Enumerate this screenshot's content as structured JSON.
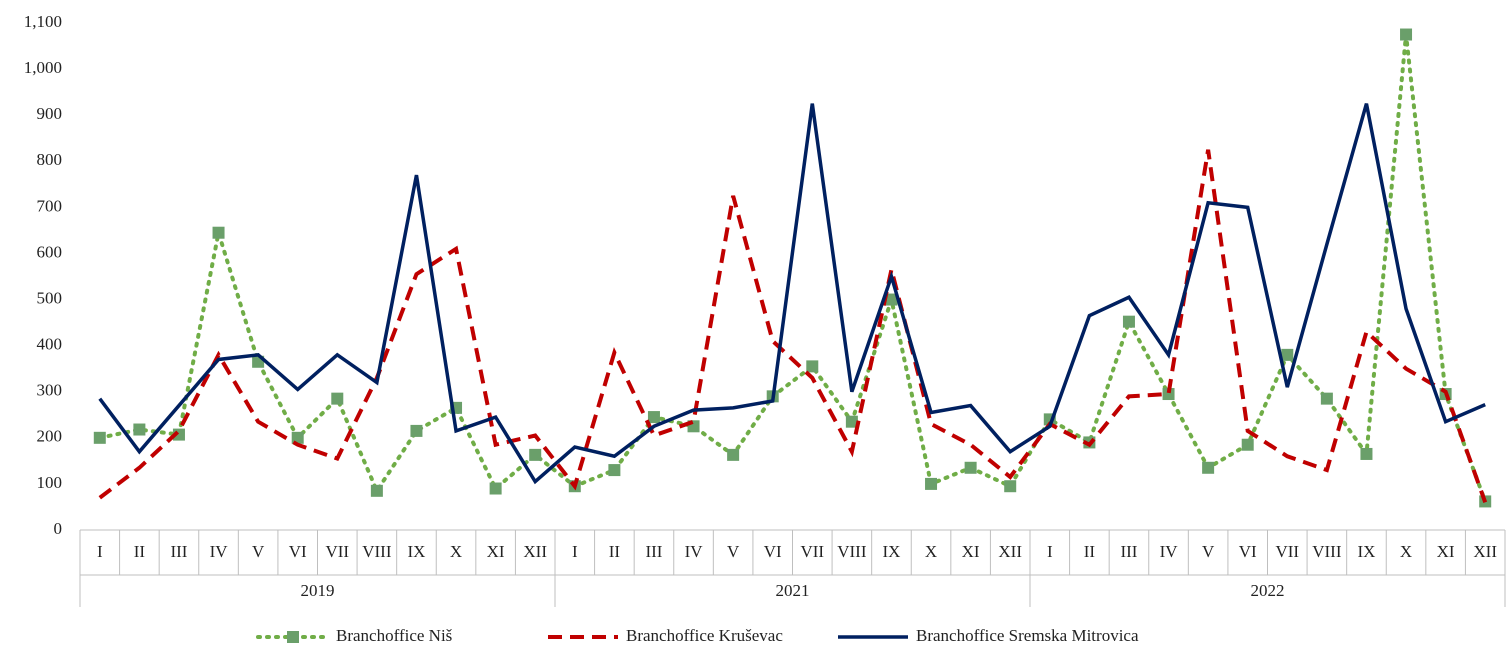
{
  "chart_data": {
    "type": "line",
    "categories": [
      "I",
      "II",
      "III",
      "IV",
      "V",
      "VI",
      "VII",
      "VIII",
      "IX",
      "X",
      "XI",
      "XII",
      "I",
      "II",
      "III",
      "IV",
      "V",
      "VI",
      "VII",
      "VIII",
      "IX",
      "X",
      "XI",
      "XII",
      "I",
      "II",
      "III",
      "IV",
      "V",
      "VI",
      "VII",
      "VIII",
      "IX",
      "X",
      "XI",
      "XII"
    ],
    "groups": [
      "2019",
      "2021",
      "2022"
    ],
    "series": [
      {
        "name": "Branchoffice Niš",
        "color": "#70ad47",
        "marker_color": "#6a9f6a",
        "dash": "dotted",
        "marker": "square",
        "values": [
          200,
          218,
          207,
          645,
          365,
          200,
          285,
          85,
          215,
          265,
          90,
          163,
          95,
          130,
          245,
          225,
          163,
          290,
          355,
          235,
          500,
          100,
          135,
          95,
          240,
          190,
          452,
          295,
          135,
          185,
          380,
          285,
          165,
          1075,
          295,
          62
        ]
      },
      {
        "name": "Branchoffice Kruševac",
        "color": "#c00000",
        "dash": "dashed",
        "values": [
          70,
          135,
          215,
          380,
          235,
          185,
          155,
          330,
          555,
          610,
          185,
          205,
          95,
          385,
          205,
          235,
          725,
          410,
          330,
          170,
          565,
          230,
          185,
          115,
          230,
          185,
          290,
          295,
          825,
          215,
          160,
          130,
          430,
          350,
          300,
          60
        ]
      },
      {
        "name": "Branchoffice Sremska Mitrovica",
        "color": "#002060",
        "dash": "solid",
        "values": [
          285,
          170,
          270,
          370,
          380,
          305,
          380,
          320,
          770,
          215,
          245,
          105,
          180,
          160,
          225,
          260,
          265,
          280,
          925,
          300,
          550,
          255,
          270,
          170,
          225,
          465,
          505,
          380,
          710,
          700,
          310,
          620,
          925,
          480,
          235,
          272
        ]
      }
    ],
    "ylim": [
      0,
      1100
    ],
    "yticks": [
      0,
      100,
      200,
      300,
      400,
      500,
      600,
      700,
      800,
      900,
      {
        "value": 1000,
        "label": "1,000"
      },
      {
        "value": 1100,
        "label": "1,100"
      }
    ],
    "grid": false,
    "legend": "bottom"
  }
}
